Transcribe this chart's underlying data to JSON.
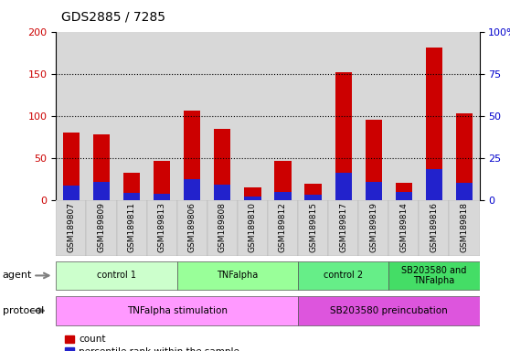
{
  "title": "GDS2885 / 7285",
  "samples": [
    "GSM189807",
    "GSM189809",
    "GSM189811",
    "GSM189813",
    "GSM189806",
    "GSM189808",
    "GSM189810",
    "GSM189812",
    "GSM189815",
    "GSM189817",
    "GSM189819",
    "GSM189814",
    "GSM189816",
    "GSM189818"
  ],
  "red_values": [
    80,
    78,
    32,
    46,
    106,
    84,
    15,
    47,
    19,
    152,
    95,
    21,
    181,
    103
  ],
  "blue_values": [
    17,
    22,
    9,
    7,
    25,
    18,
    4,
    10,
    6,
    32,
    22,
    10,
    37,
    20
  ],
  "ylim_left": [
    0,
    200
  ],
  "ylim_right": [
    0,
    100
  ],
  "yticks_left": [
    0,
    50,
    100,
    150,
    200
  ],
  "ytick_labels_right": [
    "0",
    "25",
    "50",
    "75",
    "100%"
  ],
  "agent_groups": [
    {
      "label": "control 1",
      "start": 0,
      "end": 4,
      "color": "#ccffcc"
    },
    {
      "label": "TNFalpha",
      "start": 4,
      "end": 8,
      "color": "#99ff99"
    },
    {
      "label": "control 2",
      "start": 8,
      "end": 11,
      "color": "#66ee88"
    },
    {
      "label": "SB203580 and\nTNFalpha",
      "start": 11,
      "end": 14,
      "color": "#44dd66"
    }
  ],
  "protocol_groups": [
    {
      "label": "TNFalpha stimulation",
      "start": 0,
      "end": 8,
      "color": "#ff99ff"
    },
    {
      "label": "SB203580 preincubation",
      "start": 8,
      "end": 14,
      "color": "#dd55dd"
    }
  ],
  "bar_color_red": "#cc0000",
  "bar_color_blue": "#2222cc",
  "bar_width": 0.55,
  "bg_color": "#ffffff",
  "tick_label_color_left": "#cc0000",
  "tick_label_color_right": "#0000cc",
  "col_bg_color": "#d8d8d8"
}
